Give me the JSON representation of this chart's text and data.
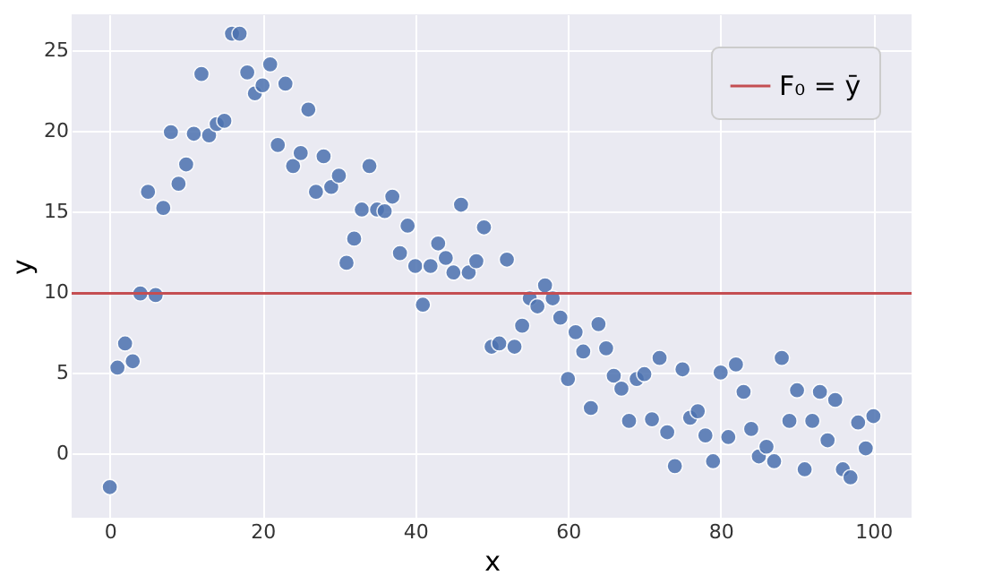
{
  "chart_data": {
    "type": "scatter",
    "xlabel": "x",
    "ylabel": "y",
    "x": [
      0,
      1,
      2,
      3,
      4,
      5,
      6,
      7,
      8,
      9,
      10,
      11,
      12,
      13,
      14,
      15,
      16,
      17,
      18,
      19,
      20,
      21,
      22,
      23,
      24,
      25,
      26,
      27,
      28,
      29,
      30,
      31,
      32,
      33,
      34,
      35,
      36,
      37,
      38,
      39,
      40,
      41,
      42,
      43,
      44,
      45,
      46,
      47,
      48,
      49,
      50,
      51,
      52,
      53,
      54,
      55,
      56,
      57,
      58,
      59,
      60,
      61,
      62,
      63,
      64,
      65,
      66,
      67,
      68,
      69,
      70,
      71,
      72,
      73,
      74,
      75,
      76,
      77,
      78,
      79,
      80,
      81,
      82,
      83,
      84,
      85,
      86,
      87,
      88,
      89,
      90,
      91,
      92,
      93,
      94,
      95,
      96,
      97,
      98,
      99,
      100
    ],
    "series": [
      {
        "color": "#4c72b0",
        "values": [
          -2.1,
          5.3,
          6.8,
          5.7,
          9.9,
          16.2,
          9.8,
          15.2,
          19.9,
          16.7,
          17.9,
          19.8,
          23.5,
          19.7,
          20.4,
          20.6,
          26.0,
          26.0,
          23.6,
          22.3,
          22.8,
          24.1,
          19.1,
          22.9,
          17.8,
          18.6,
          21.3,
          16.2,
          18.4,
          16.5,
          17.2,
          11.8,
          13.3,
          15.1,
          17.8,
          15.1,
          15.0,
          15.9,
          12.4,
          14.1,
          11.6,
          9.2,
          11.6,
          13.0,
          12.1,
          11.2,
          15.4,
          11.2,
          11.9,
          14.0,
          6.6,
          6.8,
          12.0,
          6.6,
          7.9,
          9.6,
          9.1,
          10.4,
          9.6,
          8.4,
          4.6,
          7.5,
          6.3,
          2.8,
          8.0,
          6.5,
          4.8,
          4.0,
          2.0,
          4.6,
          4.9,
          2.1,
          5.9,
          1.3,
          -0.8,
          5.2,
          2.2,
          2.6,
          1.1,
          -0.5,
          5.0,
          1.0,
          5.5,
          3.8,
          1.5,
          -0.2,
          0.4,
          -0.5,
          5.9,
          2.0,
          3.9,
          -1.0,
          2.0,
          3.8,
          0.8,
          3.3,
          -1.0,
          -1.5,
          1.9,
          0.3,
          2.3
        ]
      }
    ],
    "ref_lines": [
      {
        "axis": "y",
        "value": 9.9,
        "label": "F₀ = ȳ",
        "color": "#c44e52"
      }
    ],
    "xlim": [
      -5,
      105
    ],
    "ylim": [
      -4,
      27.2
    ],
    "xticks": [
      0,
      20,
      40,
      60,
      80,
      100
    ],
    "yticks": [
      0,
      5,
      10,
      15,
      20,
      25
    ],
    "grid": true,
    "legend": "top right",
    "marker": "circle"
  }
}
